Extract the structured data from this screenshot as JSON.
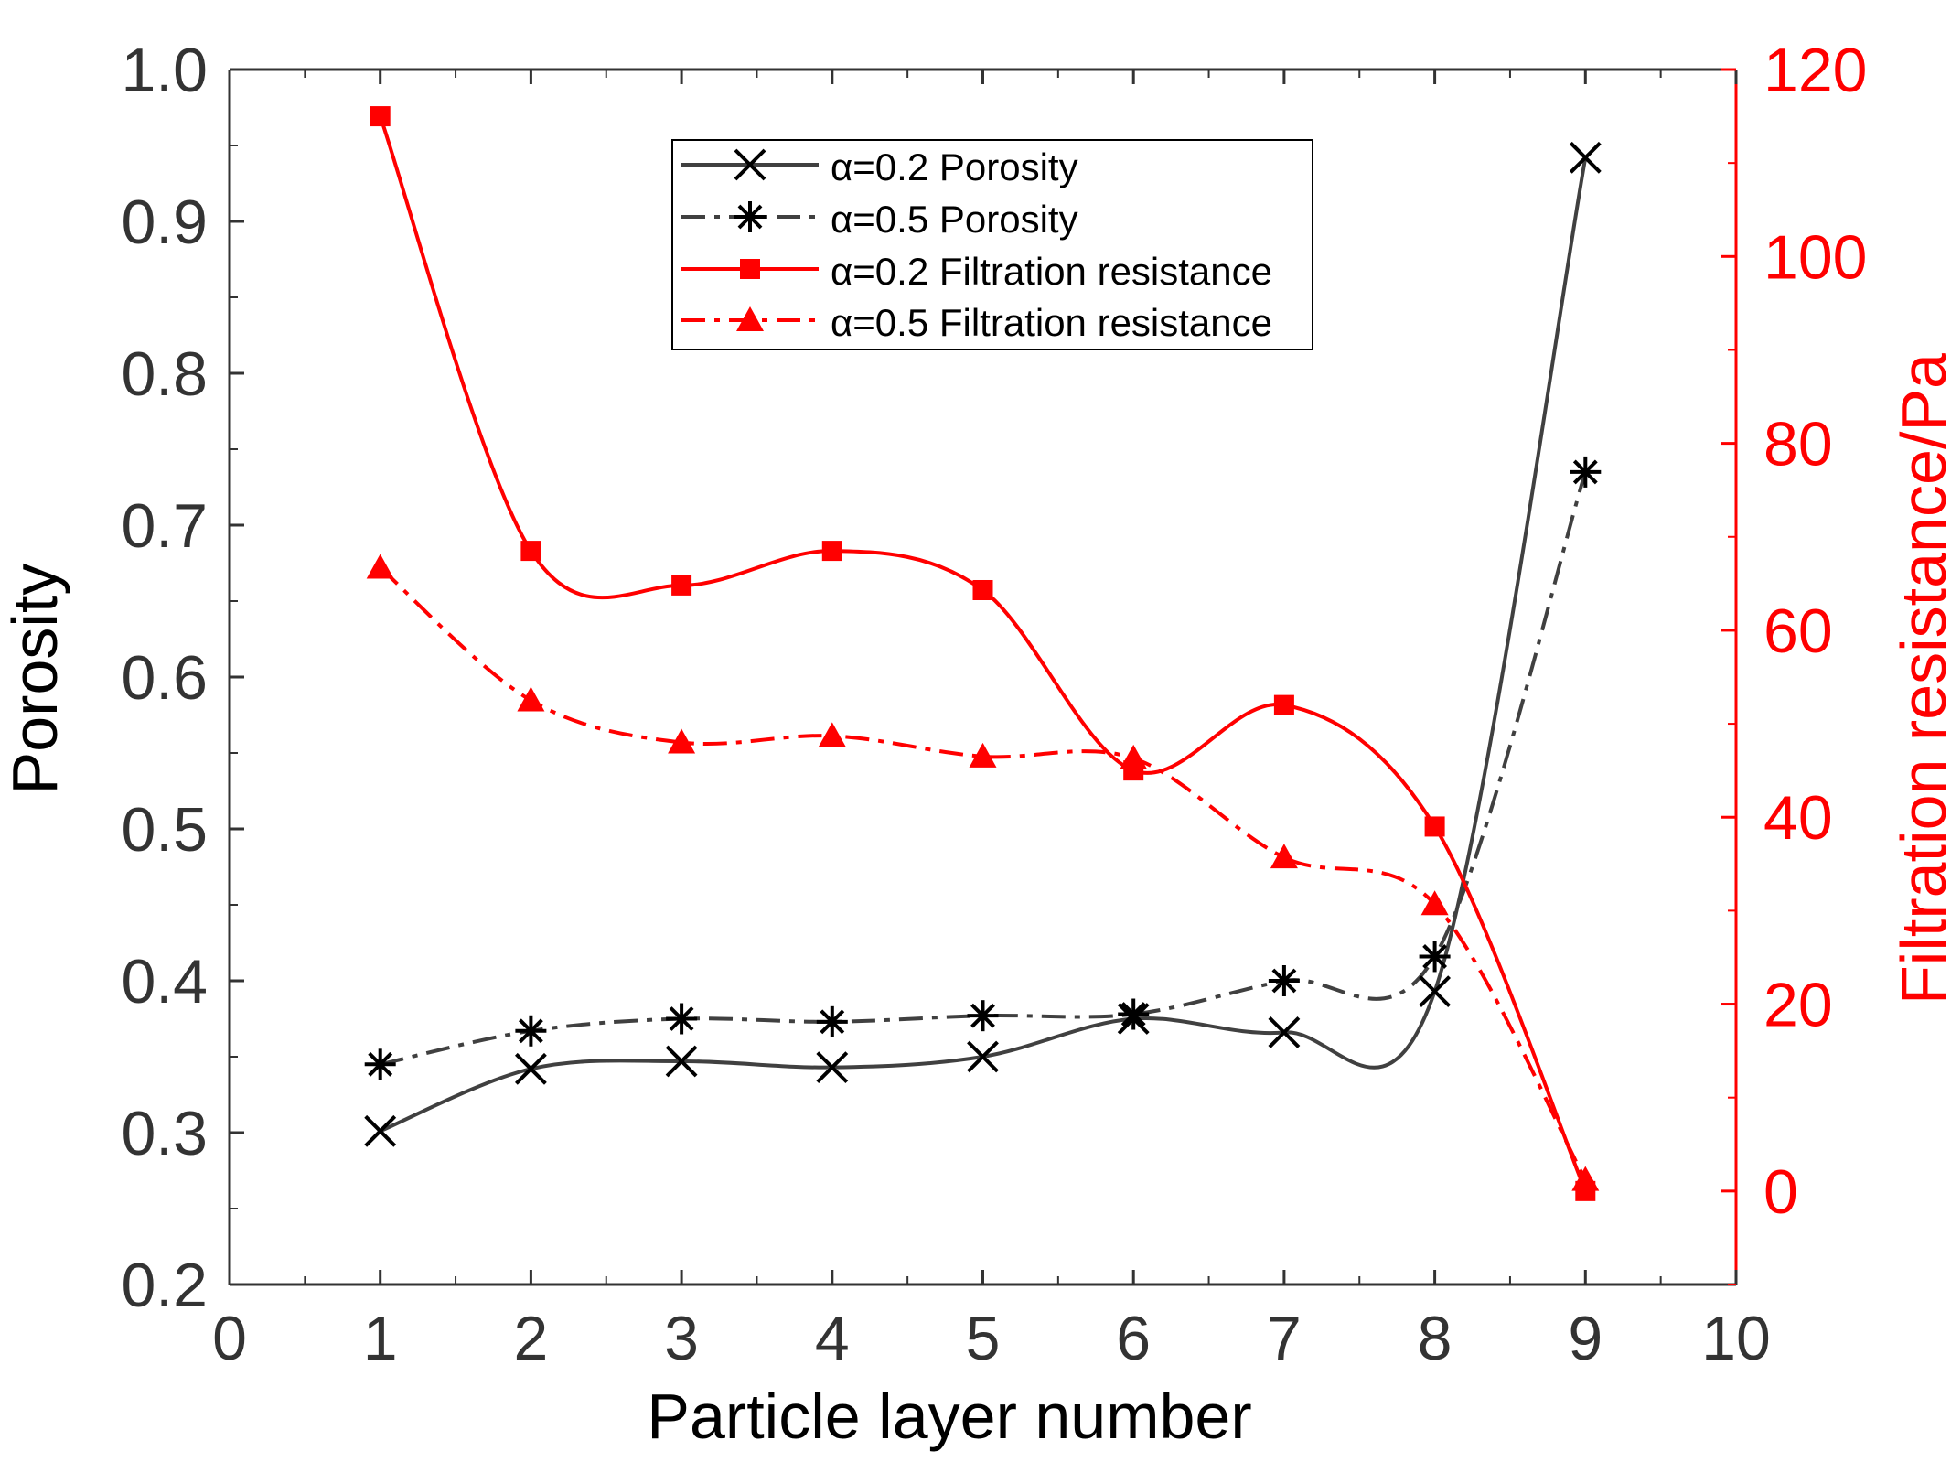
{
  "chart_data": {
    "type": "line",
    "xlabel": "Particle layer number",
    "ylabel_left": "Porosity",
    "ylabel_right": "Filtration resistance/Pa",
    "xlim": [
      0,
      10
    ],
    "ylim_left": [
      0.2,
      1.0
    ],
    "ylim_right": [
      -10,
      120
    ],
    "x_ticks": [
      "0",
      "1",
      "2",
      "3",
      "4",
      "5",
      "6",
      "7",
      "8",
      "9",
      "10"
    ],
    "y_left_ticks": [
      "0.2",
      "0.3",
      "0.4",
      "0.5",
      "0.6",
      "0.7",
      "0.8",
      "0.9",
      "1.0"
    ],
    "y_right_ticks": [
      "0",
      "20",
      "40",
      "60",
      "80",
      "100",
      "120"
    ],
    "legend_position": "top-center",
    "colors": {
      "porosity": "#404040",
      "resistance": "#ff0000",
      "axis_left": "#333333",
      "axis_right": "#ff0000"
    },
    "series": [
      {
        "name": "α=0.2 Porosity",
        "axis": "left",
        "marker": "x",
        "line": "solid",
        "x": [
          1,
          2,
          3,
          4,
          5,
          6,
          7,
          8,
          9
        ],
        "values": [
          0.301,
          0.342,
          0.347,
          0.343,
          0.35,
          0.375,
          0.366,
          0.393,
          0.942
        ]
      },
      {
        "name": "α=0.5 Porosity",
        "axis": "left",
        "marker": "asterisk",
        "line": "dashdot",
        "x": [
          1,
          2,
          3,
          4,
          5,
          6,
          7,
          8,
          9
        ],
        "values": [
          0.345,
          0.367,
          0.375,
          0.373,
          0.377,
          0.378,
          0.4,
          0.416,
          0.735
        ]
      },
      {
        "name": "α=0.2 Filtration resistance",
        "axis": "right",
        "marker": "square",
        "line": "solid",
        "x": [
          1,
          2,
          3,
          4,
          5,
          6,
          7,
          8,
          9
        ],
        "values": [
          115,
          68.5,
          64.8,
          68.5,
          64.3,
          45,
          52,
          39,
          0
        ]
      },
      {
        "name": "α=0.5 Filtration resistance",
        "axis": "right",
        "marker": "triangle",
        "line": "dashdot",
        "x": [
          1,
          2,
          3,
          4,
          5,
          6,
          7,
          8,
          9
        ],
        "values": [
          66.7,
          52.5,
          48,
          48.7,
          46.5,
          46.3,
          35.7,
          30.7,
          1.2
        ]
      }
    ]
  }
}
